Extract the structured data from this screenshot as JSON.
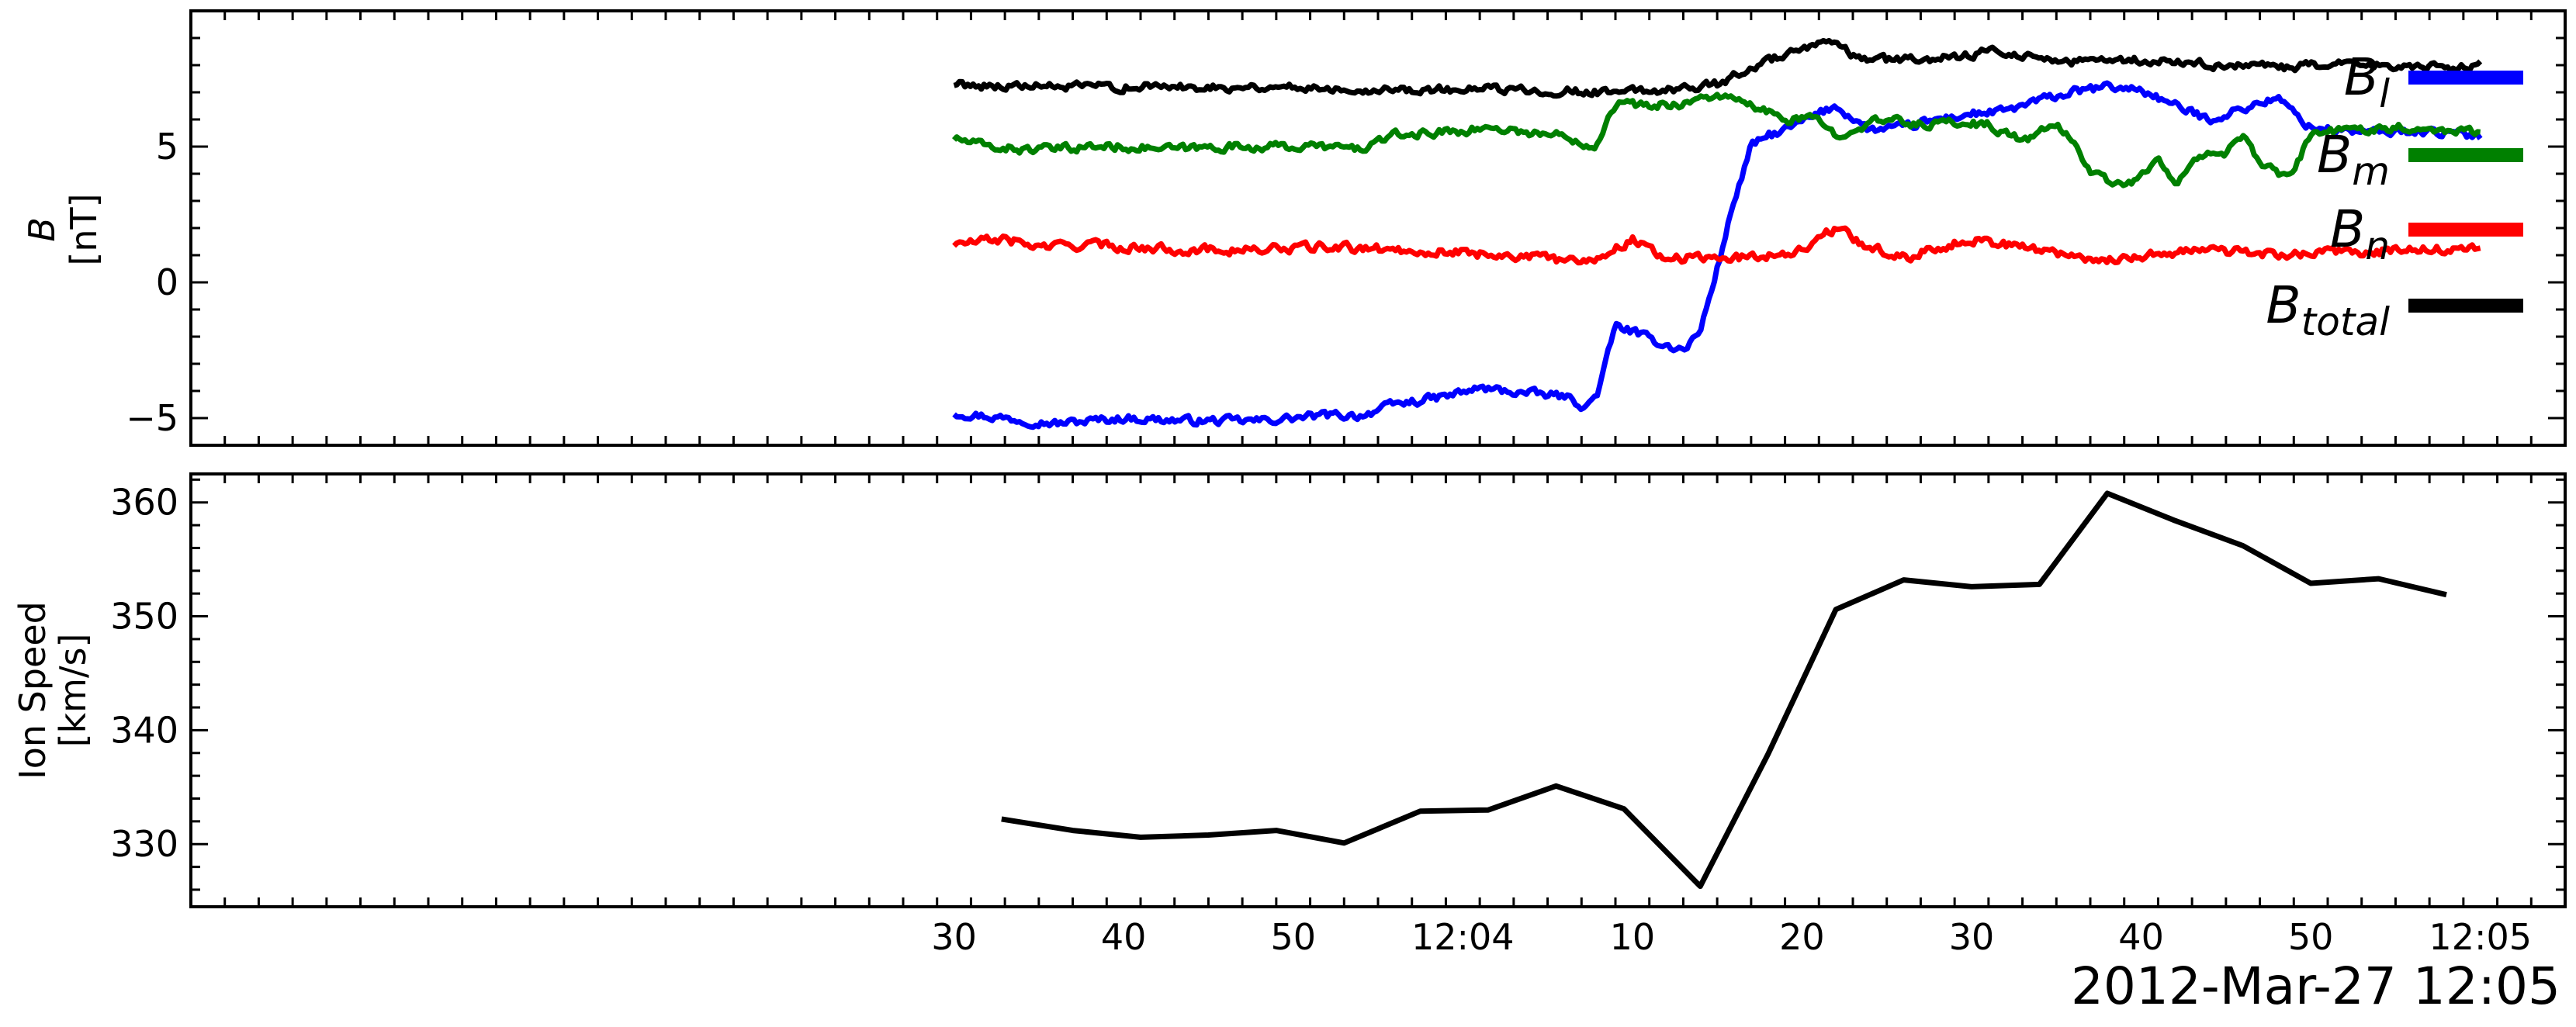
{
  "chart_data": [
    {
      "type": "line",
      "ylabel": "B",
      "ylabel_unit": "[nT]",
      "ylim": [
        -6,
        10
      ],
      "yticks": [
        -5,
        0,
        5
      ],
      "xlim": [
        -0.45,
        0.95
      ],
      "xticks": [
        {
          "t": 0.0,
          "label": "30"
        },
        {
          "t": 0.1,
          "label": "40"
        },
        {
          "t": 0.2,
          "label": "50"
        },
        {
          "t": 0.3,
          "label": "12:04"
        },
        {
          "t": 0.4,
          "label": "10"
        },
        {
          "t": 0.5,
          "label": "20"
        },
        {
          "t": 0.6,
          "label": "30"
        },
        {
          "t": 0.7,
          "label": "40"
        },
        {
          "t": 0.8,
          "label": "50"
        },
        {
          "t": 0.9,
          "label": "12:05"
        }
      ],
      "legend_position": "right",
      "series": [
        {
          "name": "B",
          "subscript": "l",
          "color": "#0000ff",
          "noise": 0.12,
          "points": [
            [
              0.0,
              -4.8
            ],
            [
              0.03,
              -5.0
            ],
            [
              0.06,
              -5.2
            ],
            [
              0.1,
              -5.0
            ],
            [
              0.14,
              -5.1
            ],
            [
              0.18,
              -5.1
            ],
            [
              0.22,
              -4.9
            ],
            [
              0.24,
              -4.9
            ],
            [
              0.26,
              -4.5
            ],
            [
              0.29,
              -4.2
            ],
            [
              0.31,
              -3.9
            ],
            [
              0.34,
              -4.1
            ],
            [
              0.36,
              -4.2
            ],
            [
              0.373,
              -4.6
            ],
            [
              0.38,
              -4.0
            ],
            [
              0.39,
              -1.6
            ],
            [
              0.4,
              -1.8
            ],
            [
              0.41,
              -2.1
            ],
            [
              0.42,
              -2.3
            ],
            [
              0.43,
              -2.5
            ],
            [
              0.44,
              -1.8
            ],
            [
              0.45,
              0.5
            ],
            [
              0.46,
              3.0
            ],
            [
              0.47,
              5.0
            ],
            [
              0.48,
              5.4
            ],
            [
              0.49,
              5.6
            ],
            [
              0.5,
              5.9
            ],
            [
              0.52,
              6.5
            ],
            [
              0.54,
              5.6
            ],
            [
              0.56,
              5.7
            ],
            [
              0.58,
              6.0
            ],
            [
              0.6,
              6.2
            ],
            [
              0.62,
              6.3
            ],
            [
              0.64,
              6.7
            ],
            [
              0.66,
              7.0
            ],
            [
              0.68,
              7.2
            ],
            [
              0.7,
              7.1
            ],
            [
              0.72,
              6.5
            ],
            [
              0.74,
              6.0
            ],
            [
              0.76,
              6.4
            ],
            [
              0.78,
              6.8
            ],
            [
              0.8,
              5.7
            ],
            [
              0.82,
              5.6
            ],
            [
              0.84,
              5.5
            ],
            [
              0.86,
              5.6
            ],
            [
              0.88,
              5.5
            ],
            [
              0.9,
              5.4
            ]
          ]
        },
        {
          "name": "B",
          "subscript": "m",
          "color": "#008000",
          "noise": 0.12,
          "points": [
            [
              0.0,
              5.3
            ],
            [
              0.02,
              5.0
            ],
            [
              0.04,
              4.9
            ],
            [
              0.06,
              4.9
            ],
            [
              0.08,
              5.0
            ],
            [
              0.1,
              5.0
            ],
            [
              0.13,
              4.9
            ],
            [
              0.16,
              5.0
            ],
            [
              0.19,
              5.0
            ],
            [
              0.22,
              5.0
            ],
            [
              0.24,
              4.9
            ],
            [
              0.25,
              5.2
            ],
            [
              0.26,
              5.4
            ],
            [
              0.28,
              5.5
            ],
            [
              0.3,
              5.6
            ],
            [
              0.32,
              5.7
            ],
            [
              0.34,
              5.5
            ],
            [
              0.36,
              5.4
            ],
            [
              0.378,
              5.0
            ],
            [
              0.385,
              6.0
            ],
            [
              0.39,
              6.6
            ],
            [
              0.41,
              6.5
            ],
            [
              0.43,
              6.6
            ],
            [
              0.45,
              6.9
            ],
            [
              0.47,
              6.5
            ],
            [
              0.49,
              6.0
            ],
            [
              0.51,
              6.0
            ],
            [
              0.52,
              5.4
            ],
            [
              0.53,
              5.7
            ],
            [
              0.55,
              6.0
            ],
            [
              0.57,
              5.8
            ],
            [
              0.59,
              5.9
            ],
            [
              0.61,
              5.8
            ],
            [
              0.63,
              5.2
            ],
            [
              0.65,
              5.8
            ],
            [
              0.66,
              5.2
            ],
            [
              0.67,
              4.1
            ],
            [
              0.69,
              3.5
            ],
            [
              0.71,
              4.5
            ],
            [
              0.72,
              3.5
            ],
            [
              0.73,
              4.6
            ],
            [
              0.75,
              4.8
            ],
            [
              0.76,
              5.3
            ],
            [
              0.77,
              4.4
            ],
            [
              0.78,
              4.0
            ],
            [
              0.79,
              4.0
            ],
            [
              0.8,
              5.5
            ],
            [
              0.82,
              5.6
            ],
            [
              0.84,
              5.7
            ],
            [
              0.86,
              5.7
            ],
            [
              0.88,
              5.6
            ],
            [
              0.9,
              5.6
            ]
          ]
        },
        {
          "name": "B",
          "subscript": "n",
          "color": "#ff0000",
          "noise": 0.13,
          "points": [
            [
              0.0,
              1.4
            ],
            [
              0.03,
              1.6
            ],
            [
              0.05,
              1.3
            ],
            [
              0.08,
              1.4
            ],
            [
              0.1,
              1.3
            ],
            [
              0.14,
              1.2
            ],
            [
              0.18,
              1.2
            ],
            [
              0.22,
              1.3
            ],
            [
              0.26,
              1.2
            ],
            [
              0.3,
              1.1
            ],
            [
              0.33,
              1.0
            ],
            [
              0.36,
              0.8
            ],
            [
              0.38,
              0.9
            ],
            [
              0.4,
              1.6
            ],
            [
              0.42,
              0.9
            ],
            [
              0.44,
              0.9
            ],
            [
              0.46,
              0.9
            ],
            [
              0.48,
              1.0
            ],
            [
              0.5,
              1.2
            ],
            [
              0.52,
              2.0
            ],
            [
              0.54,
              1.3
            ],
            [
              0.56,
              0.9
            ],
            [
              0.58,
              1.3
            ],
            [
              0.6,
              1.6
            ],
            [
              0.62,
              1.4
            ],
            [
              0.64,
              1.2
            ],
            [
              0.66,
              1.0
            ],
            [
              0.68,
              0.8
            ],
            [
              0.7,
              1.0
            ],
            [
              0.72,
              1.1
            ],
            [
              0.74,
              1.2
            ],
            [
              0.76,
              1.1
            ],
            [
              0.78,
              1.0
            ],
            [
              0.8,
              1.1
            ],
            [
              0.83,
              1.1
            ],
            [
              0.86,
              1.2
            ],
            [
              0.88,
              1.2
            ],
            [
              0.9,
              1.2
            ]
          ]
        },
        {
          "name": "B",
          "subscript": "total",
          "color": "#000000",
          "noise": 0.12,
          "points": [
            [
              0.0,
              7.3
            ],
            [
              0.05,
              7.2
            ],
            [
              0.1,
              7.2
            ],
            [
              0.15,
              7.2
            ],
            [
              0.2,
              7.2
            ],
            [
              0.25,
              7.1
            ],
            [
              0.3,
              7.1
            ],
            [
              0.34,
              7.1
            ],
            [
              0.38,
              7.0
            ],
            [
              0.42,
              7.1
            ],
            [
              0.45,
              7.3
            ],
            [
              0.47,
              7.9
            ],
            [
              0.49,
              8.4
            ],
            [
              0.5,
              8.5
            ],
            [
              0.51,
              8.7
            ],
            [
              0.52,
              8.9
            ],
            [
              0.53,
              8.3
            ],
            [
              0.55,
              8.2
            ],
            [
              0.57,
              8.2
            ],
            [
              0.59,
              8.3
            ],
            [
              0.61,
              8.5
            ],
            [
              0.63,
              8.4
            ],
            [
              0.66,
              8.1
            ],
            [
              0.69,
              8.2
            ],
            [
              0.72,
              8.1
            ],
            [
              0.75,
              8.0
            ],
            [
              0.78,
              7.9
            ],
            [
              0.81,
              8.0
            ],
            [
              0.84,
              8.0
            ],
            [
              0.87,
              7.9
            ],
            [
              0.9,
              8.0
            ]
          ]
        }
      ]
    },
    {
      "type": "line",
      "ylabel": "Ion Speed",
      "ylabel_unit": "[km/s]",
      "ylim": [
        324.5,
        362.5
      ],
      "yticks": [
        330,
        340,
        350,
        360
      ],
      "xlim": [
        -0.45,
        0.95
      ],
      "series": [
        {
          "color": "#000000",
          "points": [
            [
              0.028,
              332.2
            ],
            [
              0.07,
              331.2
            ],
            [
              0.11,
              330.6
            ],
            [
              0.15,
              330.8
            ],
            [
              0.19,
              331.2
            ],
            [
              0.23,
              330.1
            ],
            [
              0.275,
              332.9
            ],
            [
              0.315,
              333.0
            ],
            [
              0.355,
              335.1
            ],
            [
              0.395,
              333.1
            ],
            [
              0.44,
              326.3
            ],
            [
              0.48,
              337.9
            ],
            [
              0.52,
              350.6
            ],
            [
              0.56,
              353.2
            ],
            [
              0.6,
              352.6
            ],
            [
              0.64,
              352.8
            ],
            [
              0.68,
              360.8
            ],
            [
              0.72,
              358.4
            ],
            [
              0.76,
              356.2
            ],
            [
              0.8,
              352.9
            ],
            [
              0.84,
              353.3
            ],
            [
              0.88,
              351.9
            ]
          ]
        }
      ]
    }
  ],
  "footer_label": "2012-Mar-27 12:05"
}
